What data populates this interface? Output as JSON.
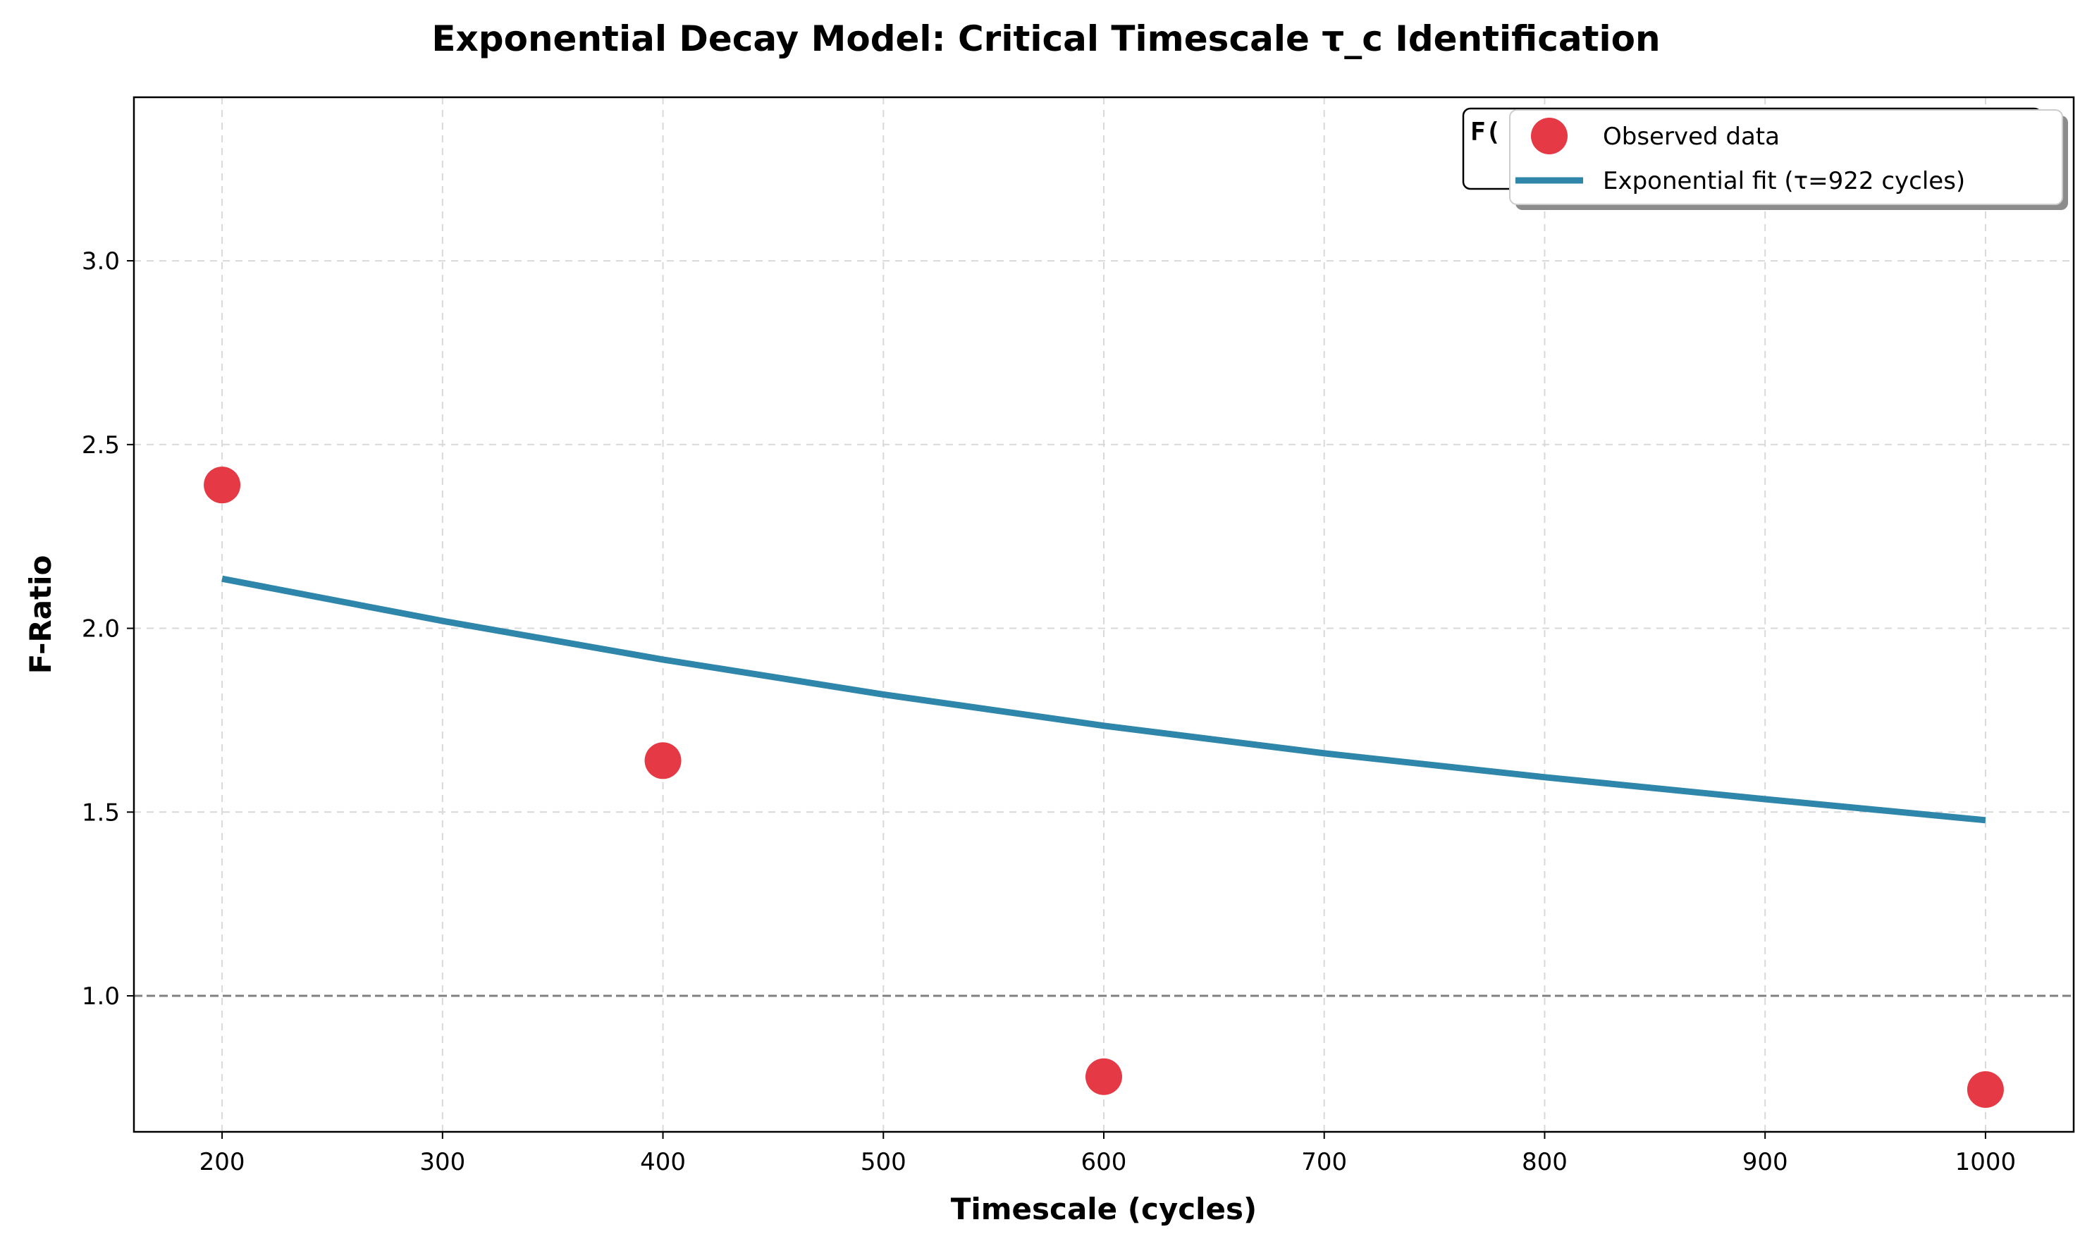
{
  "chart_data": {
    "type": "scatter",
    "title": "Exponential Decay Model: Critical Timescale τ_c Identification",
    "xlabel": "Timescale (cycles)",
    "ylabel": "F-Ratio",
    "xlim": [
      160,
      1040
    ],
    "ylim": [
      0.63,
      3.445
    ],
    "x_ticks": [
      200,
      300,
      400,
      500,
      600,
      700,
      800,
      900,
      1000
    ],
    "y_ticks": [
      1.0,
      1.5,
      2.0,
      2.5,
      3.0
    ],
    "grid": true,
    "legend_position": "top-right",
    "reference_line": {
      "y": 1.0,
      "style": "dashed",
      "color": "#808080"
    },
    "annotation_box": {
      "text": "F(",
      "position": "top-right"
    },
    "series": [
      {
        "name": "Observed data",
        "kind": "scatter",
        "color": "#E63946",
        "x": [
          200,
          400,
          600,
          1000
        ],
        "y": [
          2.39,
          1.64,
          0.78,
          0.745
        ]
      },
      {
        "name": "Exponential fit (τ=922 cycles)",
        "kind": "line",
        "color": "#2E86AB",
        "x": [
          200,
          300,
          400,
          500,
          600,
          700,
          800,
          900,
          1000
        ],
        "y": [
          2.135,
          2.02,
          1.915,
          1.82,
          1.735,
          1.66,
          1.595,
          1.535,
          1.478
        ]
      }
    ]
  }
}
